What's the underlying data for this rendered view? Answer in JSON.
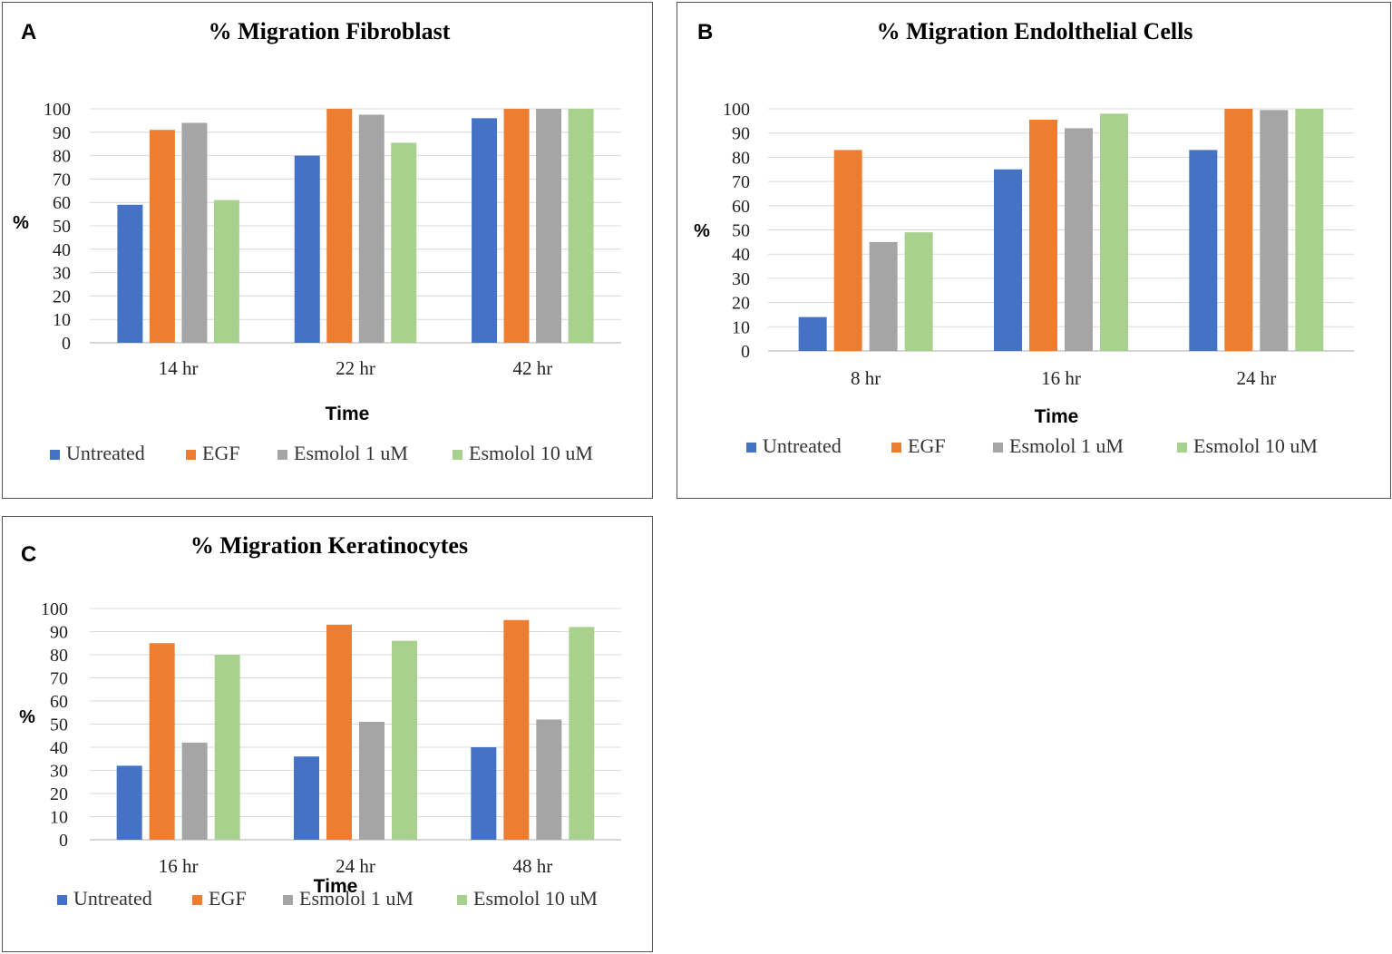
{
  "chart_data": [
    {
      "type": "bar",
      "panel_label": "A",
      "title": "% Migration Fibroblast",
      "xlabel": "Time",
      "ylabel": "%",
      "ylim": [
        0,
        100
      ],
      "yticks": [
        "0",
        "10",
        "20",
        "30",
        "40",
        "50",
        "60",
        "70",
        "80",
        "90",
        "100"
      ],
      "categories": [
        "14 hr",
        "22 hr",
        "42 hr"
      ],
      "series": [
        {
          "name": "Untreated",
          "color": "#4472c4",
          "values": [
            59,
            80,
            96
          ]
        },
        {
          "name": "EGF",
          "color": "#ed7d31",
          "values": [
            91,
            100,
            100
          ]
        },
        {
          "name": "Esmolol 1 uM",
          "color": "#a5a5a5",
          "values": [
            94,
            97.5,
            100
          ]
        },
        {
          "name": "Esmolol 10 uM",
          "color": "#a9d18e",
          "values": [
            61,
            85.5,
            100
          ]
        }
      ],
      "grid": true,
      "legend": "bottom"
    },
    {
      "type": "bar",
      "panel_label": "B",
      "title": "% Migration Endolthelial Cells",
      "xlabel": "Time",
      "ylabel": "%",
      "ylim": [
        0,
        100
      ],
      "yticks": [
        "0",
        "10",
        "20",
        "30",
        "40",
        "50",
        "60",
        "70",
        "80",
        "90",
        "100"
      ],
      "categories": [
        "8 hr",
        "16 hr",
        "24 hr"
      ],
      "series": [
        {
          "name": "Untreated",
          "color": "#4472c4",
          "values": [
            14,
            75,
            83
          ]
        },
        {
          "name": "EGF",
          "color": "#ed7d31",
          "values": [
            83,
            95.5,
            100
          ]
        },
        {
          "name": "Esmolol 1 uM",
          "color": "#a5a5a5",
          "values": [
            45,
            92,
            99.5
          ]
        },
        {
          "name": "Esmolol 10 uM",
          "color": "#a9d18e",
          "values": [
            49,
            98,
            100
          ]
        }
      ],
      "grid": true,
      "legend": "bottom"
    },
    {
      "type": "bar",
      "panel_label": "C",
      "title": "% Migration Keratinocytes",
      "xlabel": "Time",
      "ylabel": "%",
      "ylim": [
        0,
        100
      ],
      "yticks": [
        "0",
        "10",
        "20",
        "30",
        "40",
        "50",
        "60",
        "70",
        "80",
        "90",
        "100"
      ],
      "categories": [
        "16 hr",
        "24 hr",
        "48 hr"
      ],
      "series": [
        {
          "name": "Untreated",
          "color": "#4472c4",
          "values": [
            32,
            36,
            40
          ]
        },
        {
          "name": "EGF",
          "color": "#ed7d31",
          "values": [
            85,
            93,
            95
          ]
        },
        {
          "name": "Esmolol 1 uM",
          "color": "#a5a5a5",
          "values": [
            42,
            51,
            52
          ]
        },
        {
          "name": "Esmolol 10 uM",
          "color": "#a9d18e",
          "values": [
            80,
            86,
            92
          ]
        }
      ],
      "grid": true,
      "legend": "bottom"
    }
  ]
}
